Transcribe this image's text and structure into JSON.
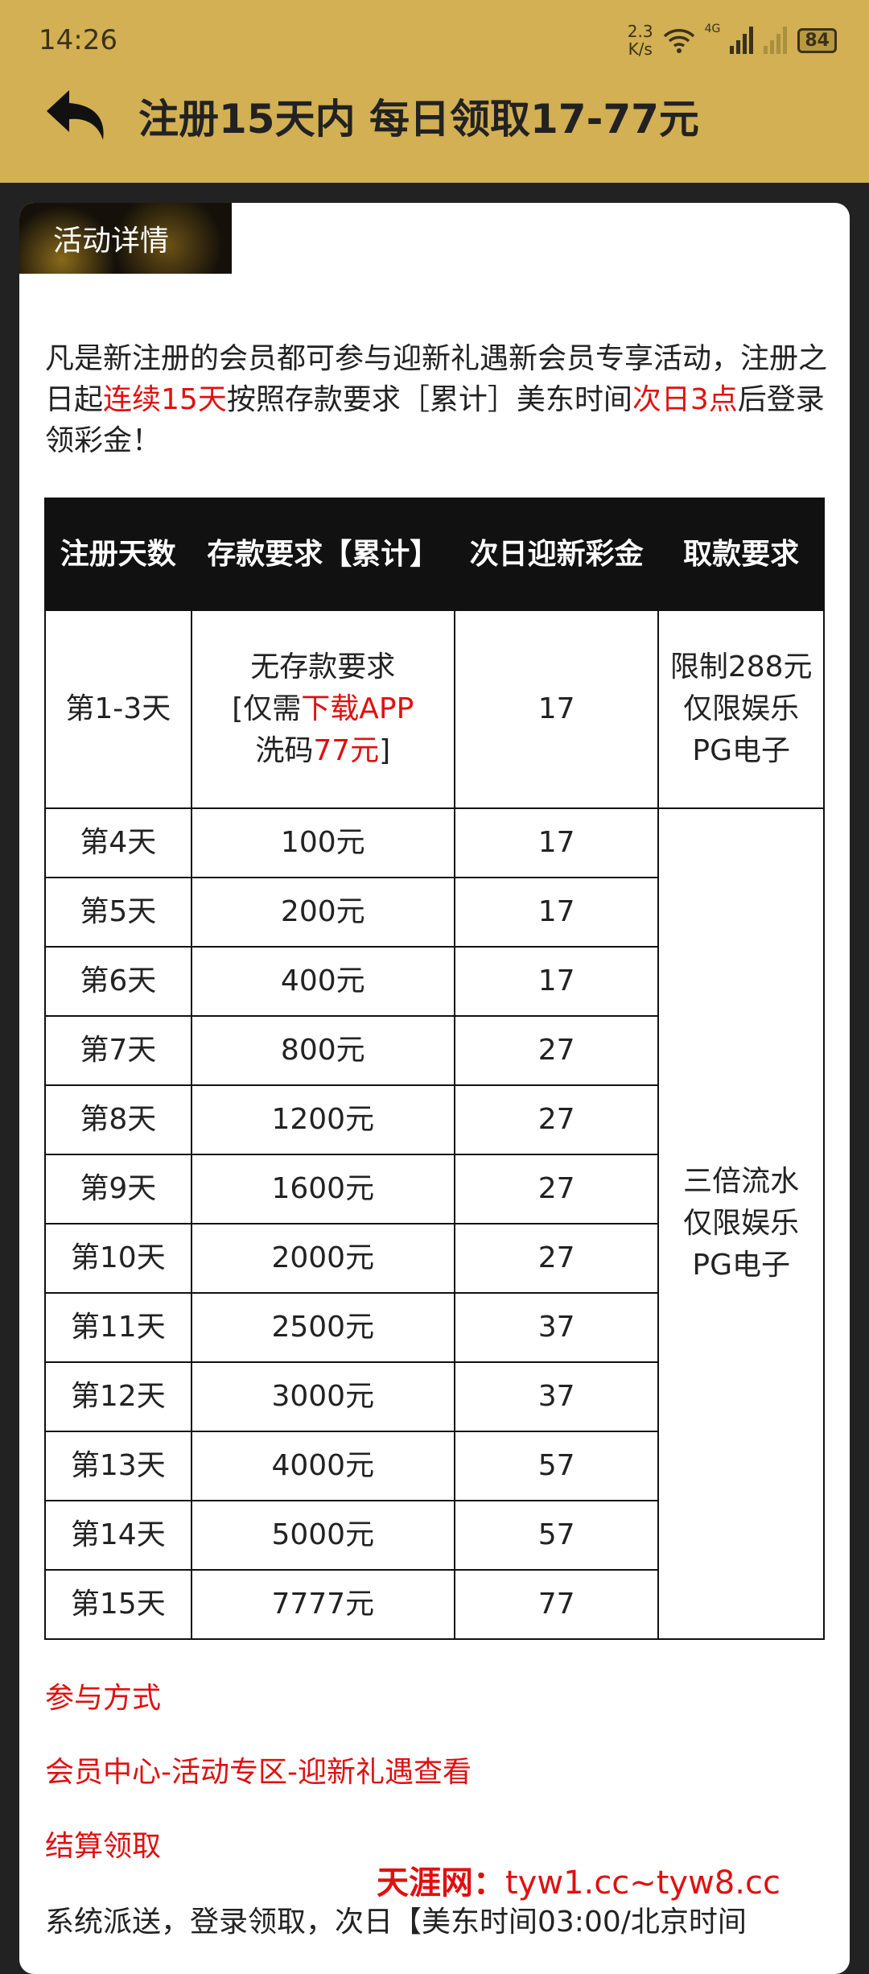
{
  "status_bar": {
    "time": "14:26",
    "speed_value": "2.3",
    "speed_unit": "K/s",
    "network": "4G",
    "battery": "84"
  },
  "header": {
    "title": "注册15天内 每日领取17-77元",
    "back_icon": "back-arrow-icon"
  },
  "tag": "活动详情",
  "intro": {
    "p1": "凡是新注册的会员都可参与迎新礼遇新会员专享活动，注册之日起",
    "h1": "连续15天",
    "p2": "按照存款要求［累计］美东时间",
    "h2": "次日3点",
    "p3": "后登录领彩金！"
  },
  "table": {
    "headers": [
      "注册天数",
      "存款要求【累计】",
      "次日迎新彩金",
      "取款要求"
    ],
    "first_row": {
      "day": "第1-3天",
      "req_a": "无存款要求",
      "req_b": "[仅需",
      "req_c": "下载APP",
      "req_d": "洗码",
      "req_e": "77元",
      "req_f": "]",
      "bonus": "17",
      "withdraw": "限制288元仅限娱乐PG电子"
    },
    "rows": [
      {
        "day": "第4天",
        "deposit": "100元",
        "bonus": "17"
      },
      {
        "day": "第5天",
        "deposit": "200元",
        "bonus": "17"
      },
      {
        "day": "第6天",
        "deposit": "400元",
        "bonus": "17"
      },
      {
        "day": "第7天",
        "deposit": "800元",
        "bonus": "27"
      },
      {
        "day": "第8天",
        "deposit": "1200元",
        "bonus": "27"
      },
      {
        "day": "第9天",
        "deposit": "1600元",
        "bonus": "27"
      },
      {
        "day": "第10天",
        "deposit": "2000元",
        "bonus": "27"
      },
      {
        "day": "第11天",
        "deposit": "2500元",
        "bonus": "37"
      },
      {
        "day": "第12天",
        "deposit": "3000元",
        "bonus": "37"
      },
      {
        "day": "第13天",
        "deposit": "4000元",
        "bonus": "57"
      },
      {
        "day": "第14天",
        "deposit": "5000元",
        "bonus": "57"
      },
      {
        "day": "第15天",
        "deposit": "7777元",
        "bonus": "77"
      }
    ],
    "withdraw_rest": "三倍流水仅限娱乐PG电子"
  },
  "sections": {
    "how": "参与方式",
    "path": "会员中心-活动专区-迎新礼遇查看",
    "settle": "结算领取",
    "settle_text": "系统派送，登录领取，次日【美东时间03:00/北京时间"
  },
  "watermark": {
    "brand": "天涯网：",
    "domains": "tyw1.cc~tyw8.cc"
  },
  "colors": {
    "header": "#d2b053",
    "highlight": "#e01010"
  }
}
